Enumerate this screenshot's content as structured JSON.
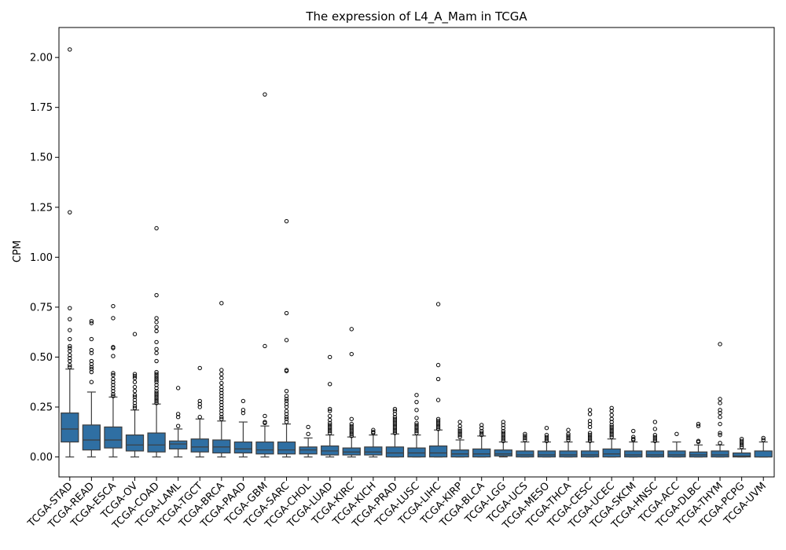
{
  "chart_data": {
    "type": "box",
    "title": "The expression of L4_A_Mam in TCGA",
    "xlabel": "",
    "ylabel": "CPM",
    "ylim": [
      -0.1,
      2.15
    ],
    "yticks": [
      0.0,
      0.25,
      0.5,
      0.75,
      1.0,
      1.25,
      1.5,
      1.75,
      2.0
    ],
    "ytick_labels": [
      "0.00",
      "0.25",
      "0.50",
      "0.75",
      "1.00",
      "1.25",
      "1.50",
      "1.75",
      "2.00"
    ],
    "box_color": "#2f6fa3",
    "categories": [
      "TCGA-STAD",
      "TCGA-READ",
      "TCGA-ESCA",
      "TCGA-OV",
      "TCGA-COAD",
      "TCGA-LAML",
      "TCGA-TGCT",
      "TCGA-BRCA",
      "TCGA-PAAD",
      "TCGA-GBM",
      "TCGA-SARC",
      "TCGA-CHOL",
      "TCGA-LUAD",
      "TCGA-KIRC",
      "TCGA-KICH",
      "TCGA-PRAD",
      "TCGA-LUSC",
      "TCGA-LIHC",
      "TCGA-KIRP",
      "TCGA-BLCA",
      "TCGA-LGG",
      "TCGA-UCS",
      "TCGA-MESO",
      "TCGA-THCA",
      "TCGA-CESC",
      "TCGA-UCEC",
      "TCGA-SKCM",
      "TCGA-HNSC",
      "TCGA-ACC",
      "TCGA-DLBC",
      "TCGA-THYM",
      "TCGA-PCPG",
      "TCGA-UVM"
    ],
    "boxes": [
      {
        "whisker_low": 0.0,
        "q1": 0.075,
        "median": 0.14,
        "q3": 0.22,
        "whisker_high": 0.44,
        "outliers": [
          2.04,
          1.225,
          0.745,
          0.69,
          0.635,
          0.59,
          0.555,
          0.545,
          0.53,
          0.51,
          0.495,
          0.48,
          0.46,
          0.45
        ]
      },
      {
        "whisker_low": 0.0,
        "q1": 0.035,
        "median": 0.085,
        "q3": 0.16,
        "whisker_high": 0.325,
        "outliers": [
          0.68,
          0.67,
          0.59,
          0.535,
          0.52,
          0.48,
          0.465,
          0.45,
          0.44,
          0.425,
          0.375
        ]
      },
      {
        "whisker_low": 0.0,
        "q1": 0.045,
        "median": 0.085,
        "q3": 0.15,
        "whisker_high": 0.3,
        "outliers": [
          0.755,
          0.695,
          0.55,
          0.545,
          0.505,
          0.42,
          0.41,
          0.39,
          0.375,
          0.36,
          0.345,
          0.33,
          0.315,
          0.305
        ]
      },
      {
        "whisker_low": 0.0,
        "q1": 0.03,
        "median": 0.06,
        "q3": 0.11,
        "whisker_high": 0.235,
        "outliers": [
          0.615,
          0.415,
          0.405,
          0.395,
          0.375,
          0.35,
          0.33,
          0.31,
          0.3,
          0.285,
          0.27,
          0.255,
          0.245
        ]
      },
      {
        "whisker_low": 0.0,
        "q1": 0.025,
        "median": 0.06,
        "q3": 0.12,
        "whisker_high": 0.265,
        "outliers": [
          1.145,
          0.81,
          0.695,
          0.675,
          0.65,
          0.63,
          0.575,
          0.54,
          0.52,
          0.48,
          0.425,
          0.415,
          0.405,
          0.395,
          0.385,
          0.375,
          0.36,
          0.345,
          0.33,
          0.32,
          0.31,
          0.3,
          0.29,
          0.28,
          0.27
        ]
      },
      {
        "whisker_low": 0.0,
        "q1": 0.04,
        "median": 0.065,
        "q3": 0.08,
        "whisker_high": 0.14,
        "outliers": [
          0.345,
          0.215,
          0.2,
          0.155
        ]
      },
      {
        "whisker_low": 0.0,
        "q1": 0.025,
        "median": 0.05,
        "q3": 0.09,
        "whisker_high": 0.19,
        "outliers": [
          0.445,
          0.28,
          0.265,
          0.25,
          0.2
        ]
      },
      {
        "whisker_low": 0.0,
        "q1": 0.02,
        "median": 0.05,
        "q3": 0.085,
        "whisker_high": 0.18,
        "outliers": [
          0.77,
          0.435,
          0.415,
          0.395,
          0.37,
          0.35,
          0.335,
          0.32,
          0.305,
          0.29,
          0.275,
          0.26,
          0.245,
          0.23,
          0.215,
          0.2,
          0.19
        ]
      },
      {
        "whisker_low": 0.0,
        "q1": 0.02,
        "median": 0.04,
        "q3": 0.075,
        "whisker_high": 0.175,
        "outliers": [
          0.28,
          0.235,
          0.22
        ]
      },
      {
        "whisker_low": 0.0,
        "q1": 0.015,
        "median": 0.035,
        "q3": 0.075,
        "whisker_high": 0.155,
        "outliers": [
          1.815,
          0.555,
          0.205,
          0.175,
          0.17
        ]
      },
      {
        "whisker_low": 0.0,
        "q1": 0.015,
        "median": 0.035,
        "q3": 0.075,
        "whisker_high": 0.165,
        "outliers": [
          1.18,
          0.72,
          0.585,
          0.435,
          0.43,
          0.33,
          0.305,
          0.29,
          0.28,
          0.265,
          0.25,
          0.23,
          0.215,
          0.2,
          0.19,
          0.175
        ]
      },
      {
        "whisker_low": 0.0,
        "q1": 0.015,
        "median": 0.035,
        "q3": 0.05,
        "whisker_high": 0.095,
        "outliers": [
          0.15,
          0.115
        ]
      },
      {
        "whisker_low": 0.0,
        "q1": 0.01,
        "median": 0.03,
        "q3": 0.055,
        "whisker_high": 0.11,
        "outliers": [
          0.5,
          0.365,
          0.24,
          0.23,
          0.205,
          0.185,
          0.17,
          0.16,
          0.15,
          0.14,
          0.13,
          0.12
        ]
      },
      {
        "whisker_low": 0.0,
        "q1": 0.01,
        "median": 0.025,
        "q3": 0.045,
        "whisker_high": 0.1,
        "outliers": [
          0.64,
          0.515,
          0.19,
          0.165,
          0.155,
          0.145,
          0.135,
          0.125,
          0.115,
          0.105
        ]
      },
      {
        "whisker_low": 0.0,
        "q1": 0.01,
        "median": 0.025,
        "q3": 0.05,
        "whisker_high": 0.11,
        "outliers": [
          0.135,
          0.125,
          0.12
        ]
      },
      {
        "whisker_low": 0.0,
        "q1": 0.0,
        "median": 0.02,
        "q3": 0.05,
        "whisker_high": 0.115,
        "outliers": [
          0.24,
          0.23,
          0.215,
          0.2,
          0.19,
          0.18,
          0.17,
          0.16,
          0.15,
          0.14,
          0.13,
          0.12
        ]
      },
      {
        "whisker_low": 0.0,
        "q1": 0.0,
        "median": 0.02,
        "q3": 0.045,
        "whisker_high": 0.11,
        "outliers": [
          0.31,
          0.275,
          0.235,
          0.195,
          0.17,
          0.16,
          0.15,
          0.14,
          0.13,
          0.12
        ]
      },
      {
        "whisker_low": 0.0,
        "q1": 0.0,
        "median": 0.02,
        "q3": 0.055,
        "whisker_high": 0.135,
        "outliers": [
          0.765,
          0.46,
          0.39,
          0.285,
          0.19,
          0.18,
          0.17,
          0.16,
          0.15,
          0.14
        ]
      },
      {
        "whisker_low": 0.0,
        "q1": 0.0,
        "median": 0.015,
        "q3": 0.035,
        "whisker_high": 0.085,
        "outliers": [
          0.175,
          0.155,
          0.14,
          0.13,
          0.12,
          0.11,
          0.1
        ]
      },
      {
        "whisker_low": 0.0,
        "q1": 0.0,
        "median": 0.015,
        "q3": 0.04,
        "whisker_high": 0.105,
        "outliers": [
          0.16,
          0.145,
          0.13,
          0.12,
          0.11
        ]
      },
      {
        "whisker_low": 0.0,
        "q1": 0.005,
        "median": 0.015,
        "q3": 0.035,
        "whisker_high": 0.075,
        "outliers": [
          0.175,
          0.16,
          0.145,
          0.13,
          0.12,
          0.11,
          0.1,
          0.09,
          0.08
        ]
      },
      {
        "whisker_low": 0.0,
        "q1": 0.0,
        "median": 0.01,
        "q3": 0.03,
        "whisker_high": 0.075,
        "outliers": [
          0.115,
          0.105,
          0.095,
          0.085
        ]
      },
      {
        "whisker_low": 0.0,
        "q1": 0.0,
        "median": 0.01,
        "q3": 0.03,
        "whisker_high": 0.075,
        "outliers": [
          0.145,
          0.11,
          0.1,
          0.09,
          0.08
        ]
      },
      {
        "whisker_low": 0.0,
        "q1": 0.0,
        "median": 0.01,
        "q3": 0.03,
        "whisker_high": 0.075,
        "outliers": [
          0.135,
          0.115,
          0.105,
          0.095,
          0.085
        ]
      },
      {
        "whisker_low": 0.0,
        "q1": 0.0,
        "median": 0.01,
        "q3": 0.03,
        "whisker_high": 0.075,
        "outliers": [
          0.235,
          0.215,
          0.18,
          0.165,
          0.15,
          0.12,
          0.11,
          0.1,
          0.09,
          0.08
        ]
      },
      {
        "whisker_low": 0.0,
        "q1": 0.0,
        "median": 0.015,
        "q3": 0.04,
        "whisker_high": 0.09,
        "outliers": [
          0.245,
          0.23,
          0.21,
          0.19,
          0.175,
          0.16,
          0.15,
          0.14,
          0.13,
          0.12,
          0.11,
          0.1
        ]
      },
      {
        "whisker_low": 0.0,
        "q1": 0.0,
        "median": 0.01,
        "q3": 0.03,
        "whisker_high": 0.075,
        "outliers": [
          0.13,
          0.1,
          0.09,
          0.085
        ]
      },
      {
        "whisker_low": 0.0,
        "q1": 0.0,
        "median": 0.01,
        "q3": 0.03,
        "whisker_high": 0.075,
        "outliers": [
          0.175,
          0.14,
          0.11,
          0.1,
          0.09,
          0.08
        ]
      },
      {
        "whisker_low": 0.0,
        "q1": 0.0,
        "median": 0.01,
        "q3": 0.03,
        "whisker_high": 0.075,
        "outliers": [
          0.115
        ]
      },
      {
        "whisker_low": 0.0,
        "q1": 0.0,
        "median": 0.01,
        "q3": 0.025,
        "whisker_high": 0.06,
        "outliers": [
          0.165,
          0.155,
          0.08,
          0.075
        ]
      },
      {
        "whisker_low": 0.0,
        "q1": 0.0,
        "median": 0.01,
        "q3": 0.03,
        "whisker_high": 0.06,
        "outliers": [
          0.565,
          0.29,
          0.27,
          0.235,
          0.22,
          0.2,
          0.165,
          0.12,
          0.11,
          0.07
        ]
      },
      {
        "whisker_low": 0.0,
        "q1": 0.0,
        "median": 0.005,
        "q3": 0.02,
        "whisker_high": 0.04,
        "outliers": [
          0.09,
          0.08,
          0.07,
          0.06,
          0.05
        ]
      },
      {
        "whisker_low": 0.0,
        "q1": 0.0,
        "median": 0.0,
        "q3": 0.03,
        "whisker_high": 0.075,
        "outliers": [
          0.095,
          0.085
        ]
      }
    ]
  }
}
